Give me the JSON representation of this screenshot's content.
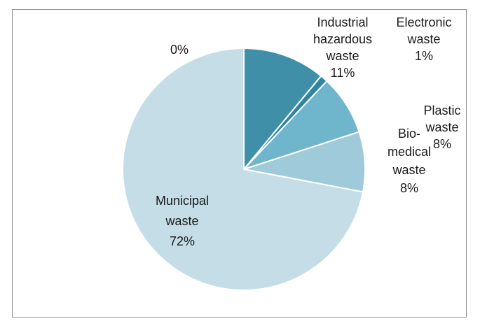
{
  "chart_data": {
    "type": "pie",
    "title": "",
    "slices": [
      {
        "name": "Industrial hazardous waste",
        "value": 11,
        "label_lines": [
          "Industrial",
          "hazardous",
          "waste",
          "11%"
        ],
        "color": "#3f8fa8"
      },
      {
        "name": "Electronic waste",
        "value": 1,
        "label_lines": [
          "Electronic",
          "waste",
          "1%"
        ],
        "color": "#2f85a3"
      },
      {
        "name": "Plastic waste",
        "value": 8,
        "label_lines": [
          "Plastic",
          "waste",
          "8%"
        ],
        "color": "#6fb6cc"
      },
      {
        "name": "Bio-medical waste",
        "value": 8,
        "label_lines": [
          "Bio-",
          "medical",
          "waste",
          "8%"
        ],
        "color": "#9fcad9"
      },
      {
        "name": "Municipal waste",
        "value": 72,
        "label_lines": [
          "Municipal",
          "waste",
          "72%"
        ],
        "color": "#c4dde6"
      },
      {
        "name": "",
        "value": 0,
        "label_lines": [
          "0%"
        ],
        "color": "#c4dde6"
      }
    ],
    "legend": "none"
  }
}
